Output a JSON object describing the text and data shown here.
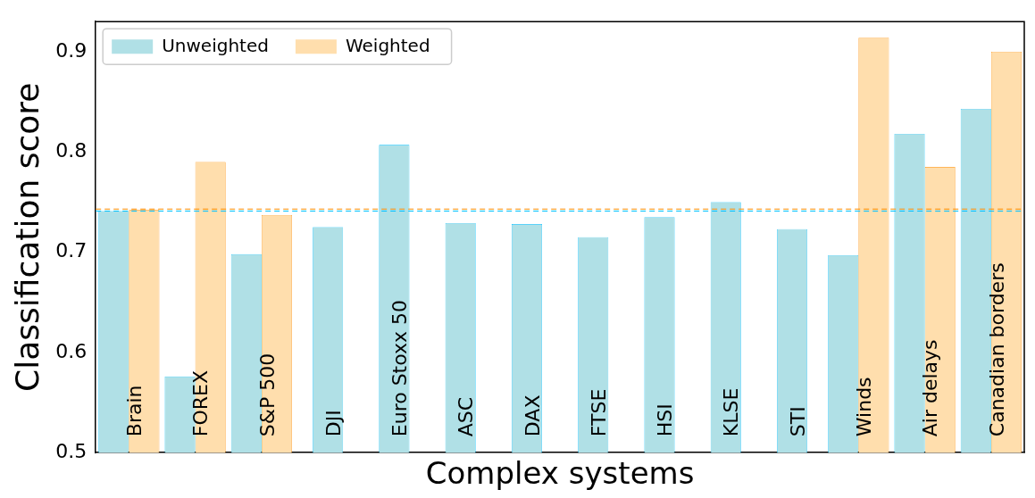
{
  "chart_data": {
    "type": "bar",
    "xlabel": "Complex systems",
    "ylabel": "Classification score",
    "categories": [
      "Brain",
      "FOREX",
      "S&P 500",
      "DJI",
      "Euro Stoxx 50",
      "ASC",
      "DAX",
      "FTSE",
      "HSI",
      "KLSE",
      "STI",
      "Winds",
      "Air delays",
      "Canadian borders"
    ],
    "series": [
      {
        "name": "Unweighted",
        "color": "#b0e0e6",
        "values": [
          0.741,
          0.576,
          0.698,
          0.725,
          0.807,
          0.729,
          0.728,
          0.715,
          0.735,
          0.75,
          0.723,
          0.697,
          0.818,
          0.843
        ]
      },
      {
        "name": "Weighted",
        "color": "#ffdead",
        "values": [
          0.742,
          0.79,
          0.737,
          null,
          null,
          null,
          null,
          null,
          null,
          null,
          null,
          0.914,
          0.785,
          0.9
        ]
      }
    ],
    "ylim": [
      0.5,
      0.93
    ],
    "yticks": [
      {
        "value": 0.5,
        "label": "0.5"
      },
      {
        "value": 0.6,
        "label": "0.6"
      },
      {
        "value": 0.7,
        "label": "0.7"
      },
      {
        "value": 0.8,
        "label": "0.8"
      },
      {
        "value": 0.9,
        "label": "0.9"
      }
    ],
    "ref_lines": [
      {
        "axis": "y",
        "value": 0.741,
        "color": "#00bfff",
        "line_style": "dashed"
      },
      {
        "axis": "y",
        "value": 0.743,
        "color": "#ff8c00",
        "line_style": "dashed"
      }
    ],
    "grid": false,
    "legend": "top left",
    "tick_labels": "y"
  }
}
